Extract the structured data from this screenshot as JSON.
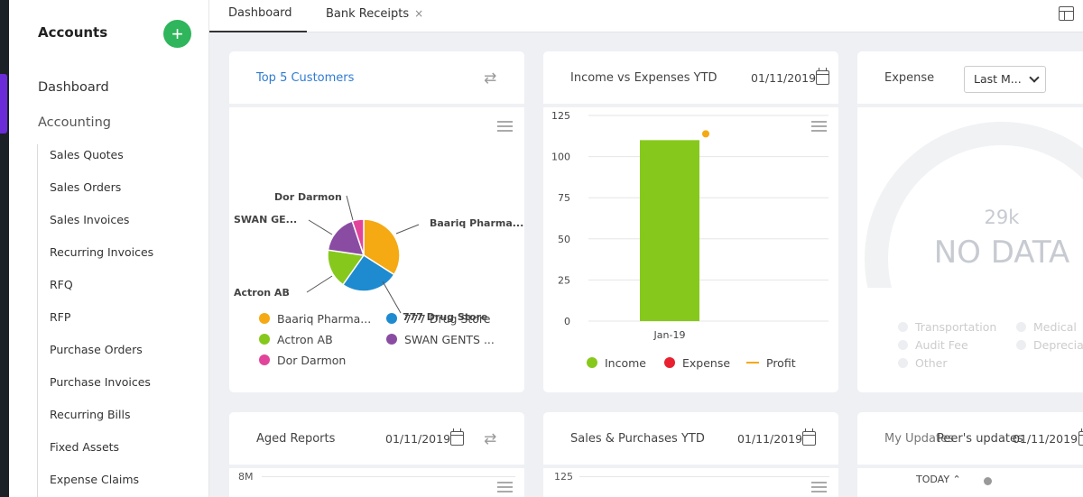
{
  "sidebar": {
    "title": "Accounts",
    "add_label": "+",
    "top_items": [
      "Dashboard",
      "Accounting"
    ],
    "sub_items": [
      "Sales Quotes",
      "Sales Orders",
      "Sales Invoices",
      "Recurring Invoices",
      "RFQ",
      "RFP",
      "Purchase Orders",
      "Purchase Invoices",
      "Recurring Bills",
      "Fixed Assets",
      "Expense Claims"
    ]
  },
  "tabs": [
    {
      "label": "Dashboard",
      "active": true
    },
    {
      "label": "Bank Receipts",
      "close": "×"
    }
  ],
  "cards": {
    "top_customers": {
      "title": "Top 5 Customers",
      "legend": [
        "Baariq Pharma...",
        "777 Drug Store",
        "Actron AB",
        "SWAN GENTS ...",
        "Dor Darmon"
      ]
    },
    "income_expenses": {
      "title": "Income vs Expenses YTD",
      "date": "01/11/2019",
      "legend": [
        "Income",
        "Expense",
        "Profit"
      ]
    },
    "expense": {
      "title": "Expense",
      "select": "Last M...",
      "center_value": "29k",
      "no_data": "NO DATA",
      "legend": [
        "Transportation",
        "Medical",
        "Audit Fee",
        "Depreciat",
        "Other"
      ]
    },
    "aged": {
      "title": "Aged Reports",
      "date": "01/11/2019",
      "axis_top": "8M"
    },
    "sales_purchases": {
      "title": "Sales & Purchases YTD",
      "date": "01/11/2019",
      "axis_top": "125"
    },
    "updates": {
      "title": "My Updates",
      "title_overlap": "Peer's updates",
      "date": "01/11/2019",
      "today": "TODAY ⌃"
    }
  },
  "colors": {
    "baariq": "#f5a913",
    "drug": "#1e8bd0",
    "actron": "#86c91c",
    "swan": "#8a4ca3",
    "dor": "#e2449b",
    "income": "#86c91c",
    "expense": "#e8202f",
    "profit": "#f5a913"
  },
  "chart_data": [
    {
      "type": "pie",
      "labels": [
        "Baariq Pharma...",
        "777 Drug Store",
        "Actron AB",
        "SWAN GE...",
        "Dor Darmon"
      ],
      "values": [
        33,
        25,
        17,
        17,
        5
      ]
    },
    {
      "type": "bar",
      "categories": [
        "Jan-19"
      ],
      "series": [
        {
          "name": "Income",
          "values": [
            110
          ]
        },
        {
          "name": "Expense",
          "values": [
            0
          ]
        },
        {
          "name": "Profit",
          "values": [
            110
          ]
        }
      ],
      "yticks": [
        0,
        25,
        50,
        75,
        100,
        125
      ],
      "ylim": [
        0,
        125
      ]
    }
  ]
}
